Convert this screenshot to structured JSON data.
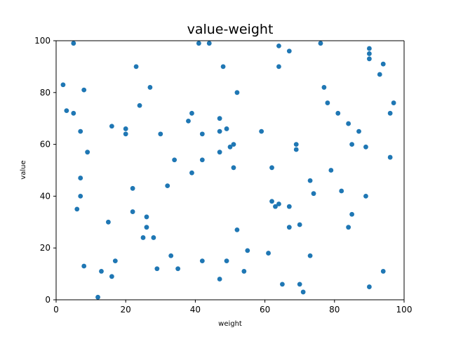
{
  "chart_data": {
    "type": "scatter",
    "title": "value-weight",
    "xlabel": "weight",
    "ylabel": "value",
    "xlim": [
      0,
      100
    ],
    "ylim": [
      0,
      100
    ],
    "x_ticks": [
      0,
      20,
      40,
      60,
      80,
      100
    ],
    "y_ticks": [
      0,
      20,
      40,
      60,
      80,
      100
    ],
    "grid": false,
    "marker_color": "#1f77b4",
    "points": [
      {
        "x": 2,
        "y": 83
      },
      {
        "x": 3,
        "y": 73
      },
      {
        "x": 5,
        "y": 99
      },
      {
        "x": 5,
        "y": 72
      },
      {
        "x": 6,
        "y": 35
      },
      {
        "x": 7,
        "y": 65
      },
      {
        "x": 7,
        "y": 47
      },
      {
        "x": 7,
        "y": 40
      },
      {
        "x": 8,
        "y": 81
      },
      {
        "x": 8,
        "y": 13
      },
      {
        "x": 9,
        "y": 57
      },
      {
        "x": 12,
        "y": 1
      },
      {
        "x": 13,
        "y": 11
      },
      {
        "x": 15,
        "y": 30
      },
      {
        "x": 16,
        "y": 67
      },
      {
        "x": 16,
        "y": 9
      },
      {
        "x": 17,
        "y": 15
      },
      {
        "x": 20,
        "y": 66
      },
      {
        "x": 20,
        "y": 64
      },
      {
        "x": 22,
        "y": 43
      },
      {
        "x": 22,
        "y": 34
      },
      {
        "x": 23,
        "y": 90
      },
      {
        "x": 24,
        "y": 75
      },
      {
        "x": 25,
        "y": 24
      },
      {
        "x": 26,
        "y": 32
      },
      {
        "x": 26,
        "y": 28
      },
      {
        "x": 27,
        "y": 82
      },
      {
        "x": 28,
        "y": 24
      },
      {
        "x": 29,
        "y": 12
      },
      {
        "x": 30,
        "y": 64
      },
      {
        "x": 32,
        "y": 44
      },
      {
        "x": 33,
        "y": 17
      },
      {
        "x": 34,
        "y": 54
      },
      {
        "x": 35,
        "y": 12
      },
      {
        "x": 38,
        "y": 69
      },
      {
        "x": 39,
        "y": 72
      },
      {
        "x": 39,
        "y": 49
      },
      {
        "x": 41,
        "y": 99
      },
      {
        "x": 42,
        "y": 64
      },
      {
        "x": 42,
        "y": 54
      },
      {
        "x": 42,
        "y": 15
      },
      {
        "x": 44,
        "y": 99
      },
      {
        "x": 47,
        "y": 70
      },
      {
        "x": 47,
        "y": 65
      },
      {
        "x": 47,
        "y": 57
      },
      {
        "x": 47,
        "y": 8
      },
      {
        "x": 48,
        "y": 90
      },
      {
        "x": 49,
        "y": 66
      },
      {
        "x": 49,
        "y": 15
      },
      {
        "x": 50,
        "y": 59
      },
      {
        "x": 51,
        "y": 60
      },
      {
        "x": 51,
        "y": 51
      },
      {
        "x": 52,
        "y": 80
      },
      {
        "x": 52,
        "y": 27
      },
      {
        "x": 54,
        "y": 11
      },
      {
        "x": 55,
        "y": 19
      },
      {
        "x": 59,
        "y": 65
      },
      {
        "x": 61,
        "y": 18
      },
      {
        "x": 62,
        "y": 51
      },
      {
        "x": 62,
        "y": 38
      },
      {
        "x": 63,
        "y": 36
      },
      {
        "x": 64,
        "y": 98
      },
      {
        "x": 64,
        "y": 90
      },
      {
        "x": 64,
        "y": 37
      },
      {
        "x": 65,
        "y": 6
      },
      {
        "x": 67,
        "y": 96
      },
      {
        "x": 67,
        "y": 36
      },
      {
        "x": 67,
        "y": 28
      },
      {
        "x": 69,
        "y": 60
      },
      {
        "x": 69,
        "y": 58
      },
      {
        "x": 70,
        "y": 29
      },
      {
        "x": 70,
        "y": 6
      },
      {
        "x": 71,
        "y": 3
      },
      {
        "x": 73,
        "y": 46
      },
      {
        "x": 73,
        "y": 17
      },
      {
        "x": 74,
        "y": 41
      },
      {
        "x": 76,
        "y": 99
      },
      {
        "x": 77,
        "y": 82
      },
      {
        "x": 78,
        "y": 76
      },
      {
        "x": 79,
        "y": 50
      },
      {
        "x": 81,
        "y": 72
      },
      {
        "x": 82,
        "y": 42
      },
      {
        "x": 84,
        "y": 68
      },
      {
        "x": 84,
        "y": 28
      },
      {
        "x": 85,
        "y": 60
      },
      {
        "x": 85,
        "y": 33
      },
      {
        "x": 87,
        "y": 65
      },
      {
        "x": 89,
        "y": 59
      },
      {
        "x": 89,
        "y": 40
      },
      {
        "x": 90,
        "y": 97
      },
      {
        "x": 90,
        "y": 95
      },
      {
        "x": 90,
        "y": 93
      },
      {
        "x": 90,
        "y": 5
      },
      {
        "x": 93,
        "y": 87
      },
      {
        "x": 94,
        "y": 91
      },
      {
        "x": 94,
        "y": 11
      },
      {
        "x": 96,
        "y": 72
      },
      {
        "x": 96,
        "y": 55
      },
      {
        "x": 97,
        "y": 76
      }
    ]
  }
}
